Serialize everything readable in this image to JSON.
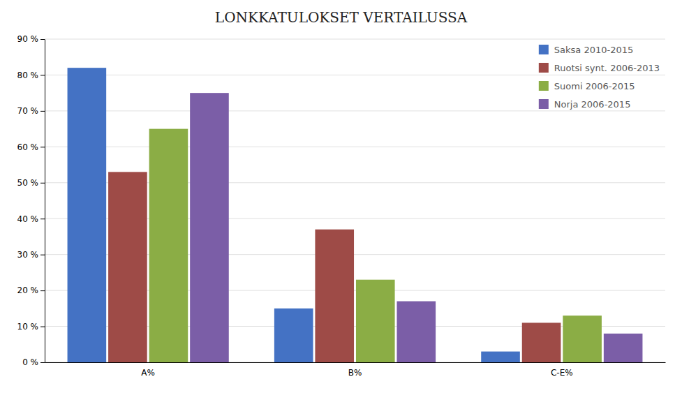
{
  "chart_data": {
    "type": "bar",
    "title": "LONKKATULOKSET VERTAILUSSA",
    "categories": [
      "A%",
      "B%",
      "C-E%"
    ],
    "series": [
      {
        "name": "Saksa 2010-2015",
        "color": "#4472C4",
        "values": [
          82,
          15,
          3
        ]
      },
      {
        "name": "Ruotsi synt. 2006-2013",
        "color": "#9E4B47",
        "values": [
          53,
          37,
          11
        ]
      },
      {
        "name": "Suomi 2006-2015",
        "color": "#8BAD45",
        "values": [
          65,
          23,
          13
        ]
      },
      {
        "name": "Norja 2006-2015",
        "color": "#7B5EA7",
        "values": [
          75,
          17,
          8
        ]
      }
    ],
    "ylim": [
      0,
      90
    ],
    "yticks": [
      {
        "value": 0,
        "label": "0 %"
      },
      {
        "value": 10,
        "label": "10 %"
      },
      {
        "value": 20,
        "label": "20 %"
      },
      {
        "value": 30,
        "label": "30 %"
      },
      {
        "value": 40,
        "label": "40 %"
      },
      {
        "value": 50,
        "label": "50 %"
      },
      {
        "value": 60,
        "label": "60 %"
      },
      {
        "value": 70,
        "label": "70 %"
      },
      {
        "value": 80,
        "label": "80 %"
      },
      {
        "value": 90,
        "label": "90 %"
      }
    ],
    "grid": true,
    "legend": "upper right"
  }
}
